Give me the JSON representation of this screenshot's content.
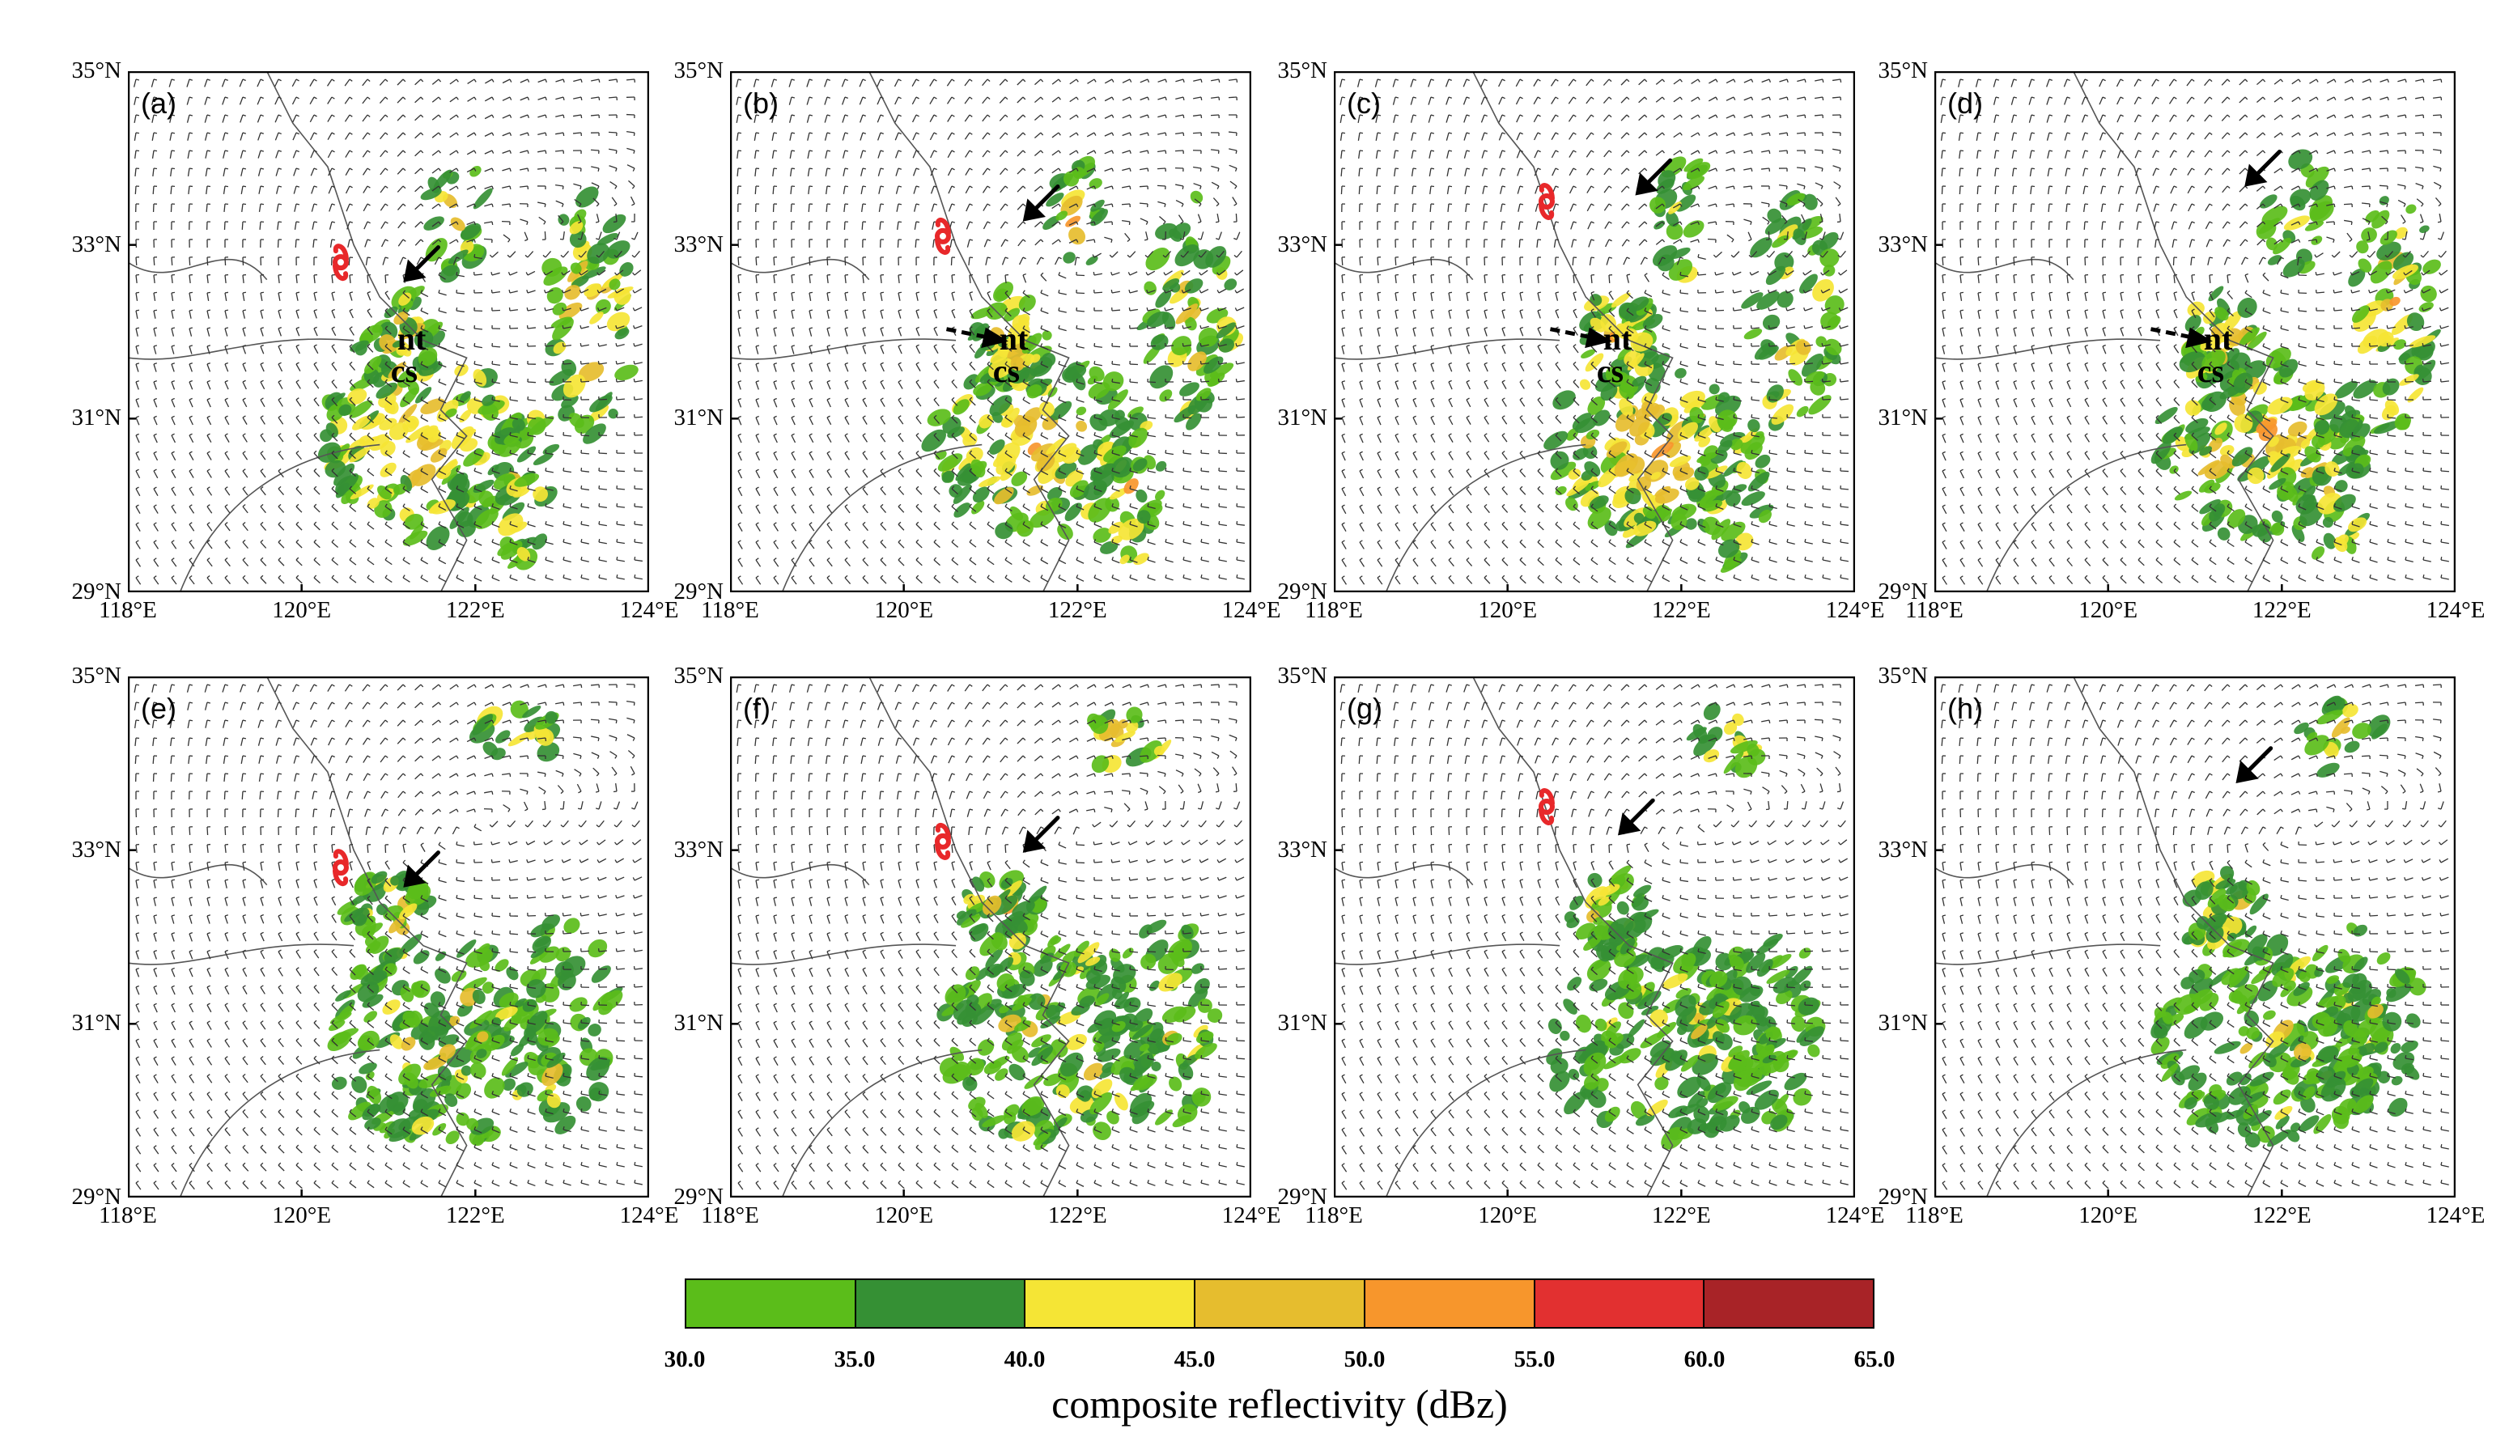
{
  "figure": {
    "panels": [
      {
        "label": "(a)",
        "typhoon_symbol": {
          "lon": 120.45,
          "lat": 32.8
        },
        "annotations": [
          "nt",
          "cs"
        ],
        "arrow": "solid"
      },
      {
        "label": "(b)",
        "typhoon_symbol": {
          "lon": 120.45,
          "lat": 33.1
        },
        "annotations": [
          "nt",
          "cs"
        ],
        "arrow": "solid+dashed"
      },
      {
        "label": "(c)",
        "typhoon_symbol": {
          "lon": 120.45,
          "lat": 33.5
        },
        "annotations": [
          "nt",
          "cs"
        ],
        "arrow": "solid+dashed"
      },
      {
        "label": "(d)",
        "typhoon_symbol": null,
        "annotations": [
          "nt",
          "cs"
        ],
        "arrow": "solid+dashed"
      },
      {
        "label": "(e)",
        "typhoon_symbol": {
          "lon": 120.45,
          "lat": 32.8
        },
        "annotations": [],
        "arrow": "solid"
      },
      {
        "label": "(f)",
        "typhoon_symbol": {
          "lon": 120.45,
          "lat": 33.1
        },
        "annotations": [],
        "arrow": "solid"
      },
      {
        "label": "(g)",
        "typhoon_symbol": {
          "lon": 120.45,
          "lat": 33.5
        },
        "annotations": [],
        "arrow": "solid"
      },
      {
        "label": "(h)",
        "typhoon_symbol": null,
        "annotations": [],
        "arrow": "solid"
      }
    ],
    "y_tick_labels": [
      "35°N",
      "33°N",
      "31°N",
      "29°N"
    ],
    "x_tick_labels": [
      "118°E",
      "120°E",
      "122°E",
      "124°E"
    ],
    "lat_range": [
      29,
      35
    ],
    "lon_range": [
      118,
      124
    ],
    "colors": {
      "typhoon": "#e8282a",
      "border": "#555555",
      "wind": "#333333"
    }
  },
  "colorbar": {
    "title": "composite reflectivity (dBz)",
    "ticks": [
      "30.0",
      "35.0",
      "40.0",
      "45.0",
      "50.0",
      "55.0",
      "60.0",
      "65.0"
    ],
    "colors": [
      "#5bbd1a",
      "#359034",
      "#f5e535",
      "#e6bd2e",
      "#f7962c",
      "#e23030",
      "#a82327"
    ]
  }
}
